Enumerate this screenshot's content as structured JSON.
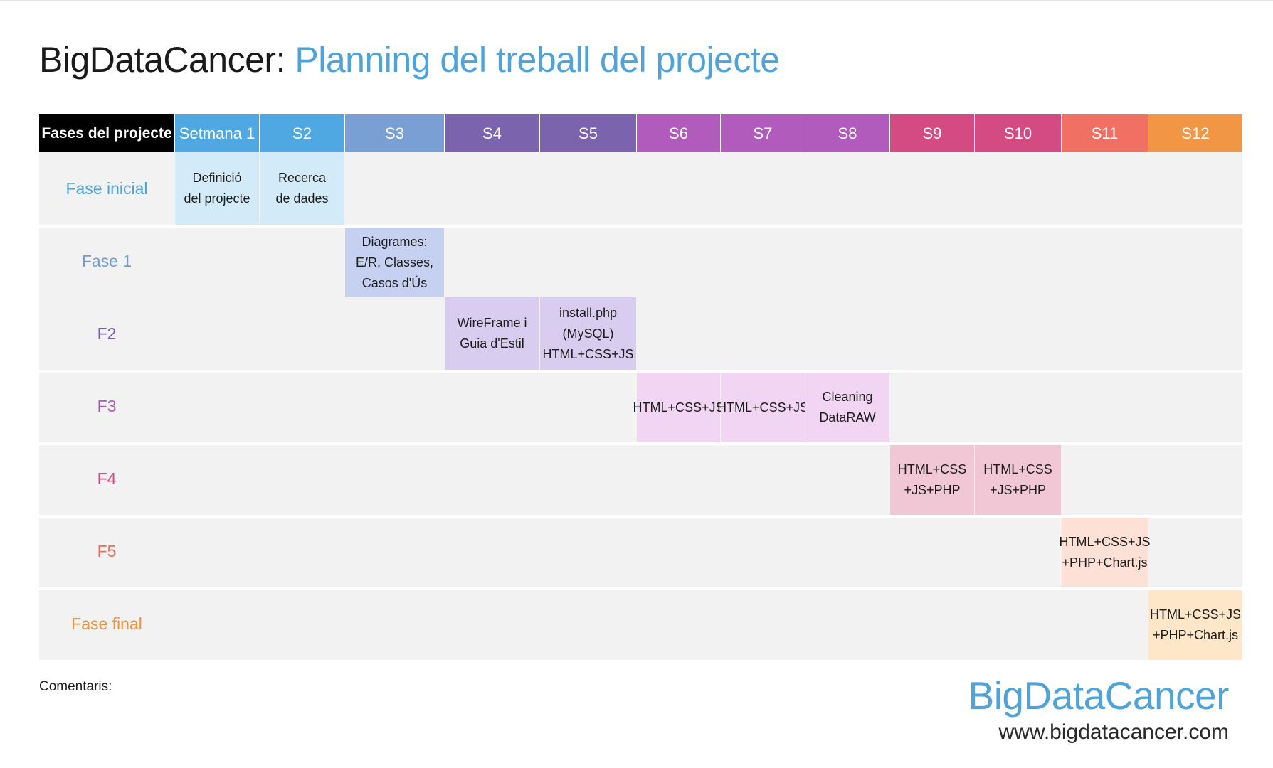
{
  "title": {
    "prefix": "BigDataCancer:",
    "main": "Planning del treball del projecte"
  },
  "header": {
    "first": "Fases del projecte",
    "weeks": [
      {
        "label": "Setmana 1",
        "color": "#4fa8e1"
      },
      {
        "label": "S2",
        "color": "#4fa8e1"
      },
      {
        "label": "S3",
        "color": "#7a9fd4"
      },
      {
        "label": "S4",
        "color": "#7b64ad"
      },
      {
        "label": "S5",
        "color": "#7b64ad"
      },
      {
        "label": "S6",
        "color": "#b15bbc"
      },
      {
        "label": "S7",
        "color": "#b15bbc"
      },
      {
        "label": "S8",
        "color": "#b15bbc"
      },
      {
        "label": "S9",
        "color": "#d44b83"
      },
      {
        "label": "S10",
        "color": "#d44b83"
      },
      {
        "label": "S11",
        "color": "#f07064"
      },
      {
        "label": "S12",
        "color": "#f19644"
      }
    ]
  },
  "phases": [
    {
      "label": "Fase inicial",
      "color": "#4fa3d6"
    },
    {
      "label": "Fase 1",
      "color": "#6f9bd2"
    },
    {
      "label": "F2",
      "color": "#7b5fb0"
    },
    {
      "label": "F3",
      "color": "#ae57bb"
    },
    {
      "label": "F4",
      "color": "#d44b83"
    },
    {
      "label": "F5",
      "color": "#f06c5c"
    },
    {
      "label": "Fase final",
      "color": "#f0913d"
    }
  ],
  "tasks": [
    {
      "phase": 0,
      "week": 1,
      "text": "Definició\ndel projecte",
      "bg": "#d3ebf8"
    },
    {
      "phase": 0,
      "week": 2,
      "text": "Recerca\nde dades",
      "bg": "#d3ebf8"
    },
    {
      "phase": 1,
      "week": 3,
      "text": "Diagrames:\nE/R, Classes,\nCasos d'Ús",
      "bg": "#c6d1f1"
    },
    {
      "phase": 2,
      "week": 4,
      "text": "WireFrame i\nGuia d'Estil",
      "bg": "#d8cdee"
    },
    {
      "phase": 2,
      "week": 5,
      "text": "install.php\n(MySQL)\nHTML+CSS+JS",
      "bg": "#d8cdee"
    },
    {
      "phase": 3,
      "week": 6,
      "text": "HTML+CSS+JS",
      "bg": "#f2d4f3"
    },
    {
      "phase": 3,
      "week": 7,
      "text": "HTML+CSS+JS",
      "bg": "#f2d4f3"
    },
    {
      "phase": 3,
      "week": 8,
      "text": "Cleaning\nDataRAW",
      "bg": "#f2d4f3"
    },
    {
      "phase": 4,
      "week": 9,
      "text": "HTML+CSS\n+JS+PHP",
      "bg": "#f1c6d5"
    },
    {
      "phase": 4,
      "week": 10,
      "text": "HTML+CSS\n+JS+PHP",
      "bg": "#f1c6d5"
    },
    {
      "phase": 5,
      "week": 11,
      "text": "HTML+CSS+JS\n+PHP+Chart.js",
      "bg": "#fde1d7"
    },
    {
      "phase": 6,
      "week": 12,
      "text": "HTML+CSS+JS\n+PHP+Chart.js",
      "bg": "#fde7c8"
    }
  ],
  "footer": {
    "comment_label": "Comentaris:",
    "brand": "BigDataCancer",
    "url": "www.bigdatacancer.com"
  }
}
